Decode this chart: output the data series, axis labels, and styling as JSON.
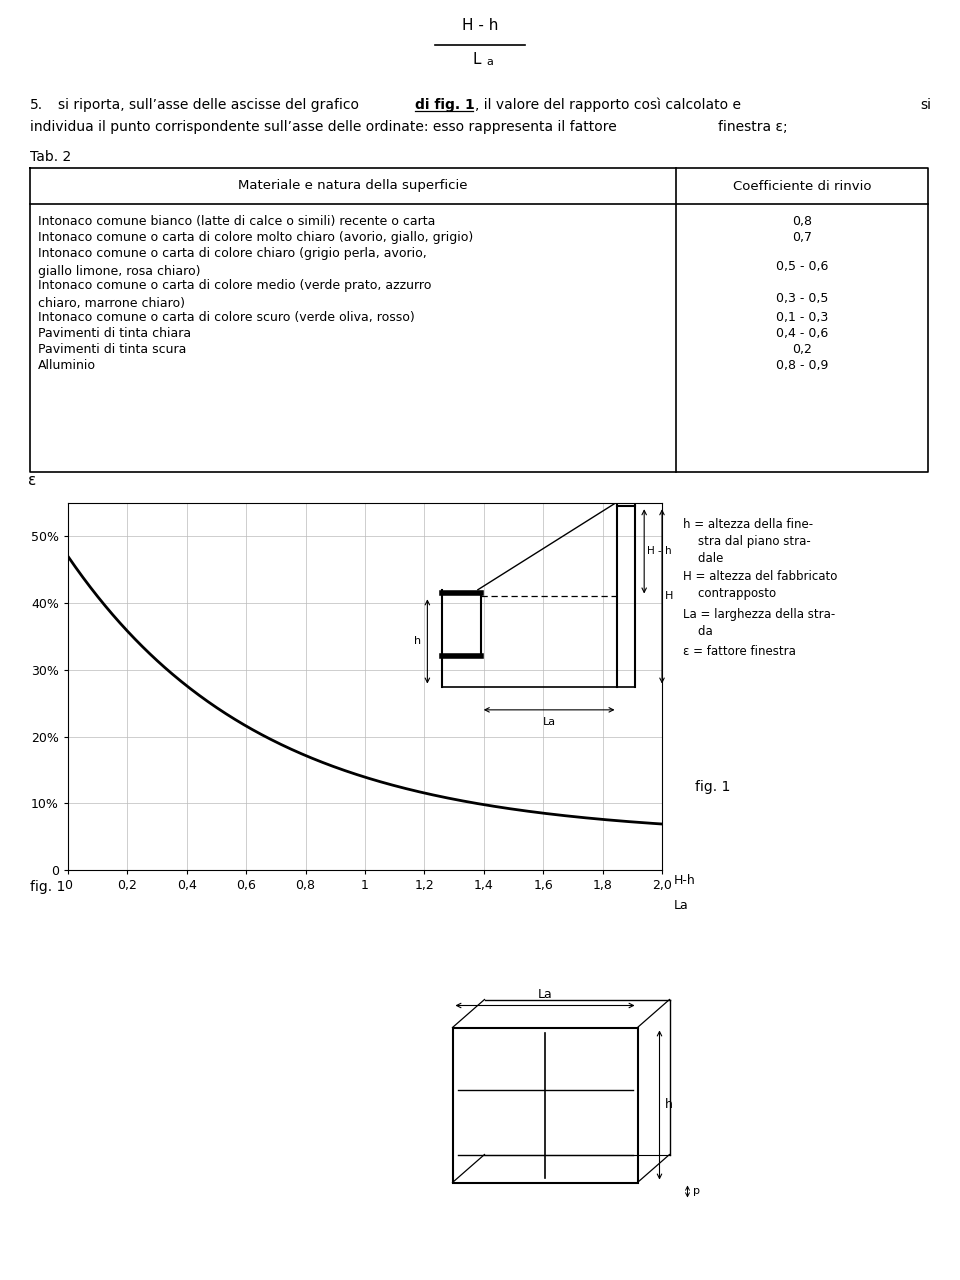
{
  "title_formula_top": "H - h",
  "title_formula_bottom": "L",
  "title_formula_sub": "a",
  "step5_number": "5.",
  "step5_part1": "si riporta, sull’asse delle ascisse del grafico ",
  "step5_underline": "di fig. 1",
  "step5_part2": ", il valore del rapporto così calcolato e",
  "step5_si": "si",
  "step5_line2a": "individua il punto corrispondente sull’asse delle ordinate: esso rappresenta il fattore",
  "step5_finestra": "finestra ε;",
  "tab_label": "Tab. 2",
  "table_col1_header": "Materiale e natura della superficie",
  "table_col2_header": "Coefficiente di rinvio",
  "table_rows": [
    [
      "Intonaco comune bianco (latte di calce o simili) recente o carta",
      "0,8"
    ],
    [
      "Intonaco comune o carta di colore molto chiaro (avorio, giallo, grigio)",
      "0,7"
    ],
    [
      "Intonaco comune o carta di colore chiaro (grigio perla, avorio,\ngiallo limone, rosa chiaro)",
      "0,5 - 0,6"
    ],
    [
      "Intonaco comune o carta di colore medio (verde prato, azzurro\nchiaro, marrone chiaro)",
      "0,3 - 0,5"
    ],
    [
      "Intonaco comune o carta di colore scuro (verde oliva, rosso)",
      "0,1 - 0,3"
    ],
    [
      "Pavimenti di tinta chiara",
      "0,4 - 0,6"
    ],
    [
      "Pavimenti di tinta scura",
      "0,2"
    ],
    [
      "Alluminio",
      "0,8 - 0,9"
    ]
  ],
  "graph_xtick_labels": [
    "0",
    "0,2",
    "0,4",
    "0,6",
    "0,8",
    "1",
    "1,2",
    "1,4",
    "1,6",
    "1,8",
    "2,0"
  ],
  "graph_ytick_labels": [
    "0",
    "10%",
    "20%",
    "30%",
    "40%",
    "50%"
  ],
  "legend_lines": [
    "h = altezza della fine-\n    stra dal piano stra-\n    dale",
    "H = altezza del fabbricato\n    contrapposto",
    "La = larghezza della stra-\n    da",
    "ε = fattore finestra"
  ],
  "fig1_right_label": "fig. 1",
  "fig1_bottom_label": "fig. 1",
  "background_color": "#ffffff",
  "text_color": "#000000"
}
